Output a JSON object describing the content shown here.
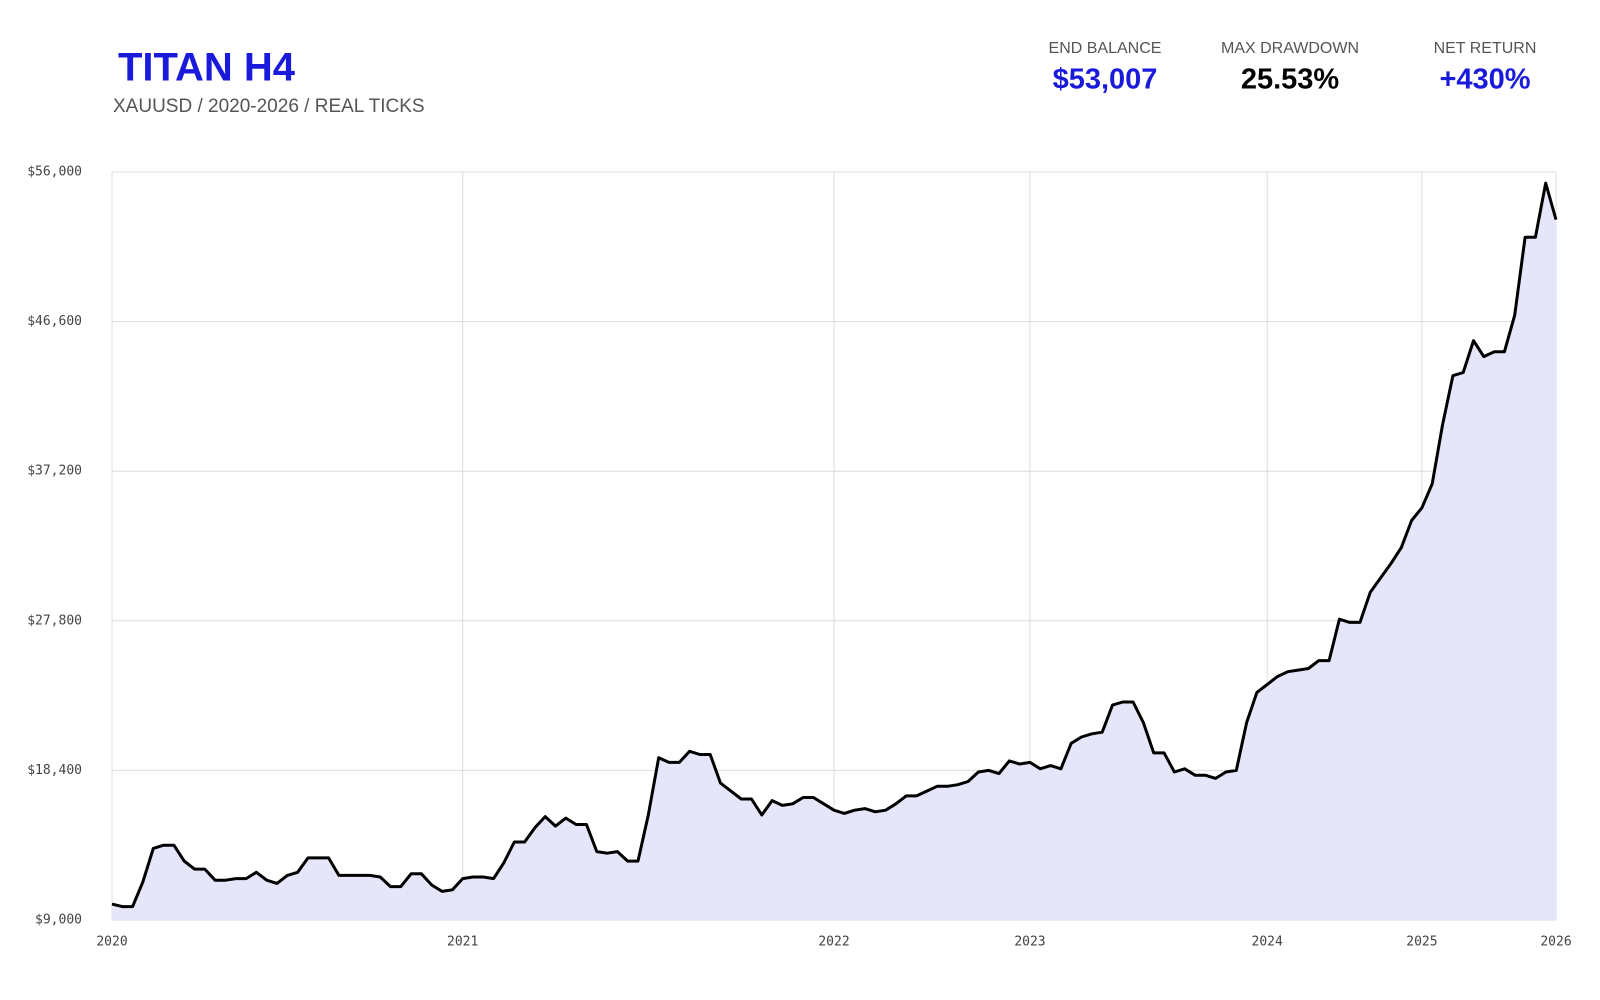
{
  "chart_data": {
    "type": "area",
    "title": "TITAN H4",
    "subtitle": "XAUUSD / 2020-2026 / REAL TICKS",
    "stats": [
      {
        "label": "END BALANCE",
        "value": "$53,007",
        "color": "#1a1adb"
      },
      {
        "label": "MAX DRAWDOWN",
        "value": "25.53%",
        "color": "#000000"
      },
      {
        "label": "NET RETURN",
        "value": "+430%",
        "color": "#1a1adb"
      }
    ],
    "categories": [
      "2020",
      null,
      null,
      null,
      null,
      null,
      null,
      null,
      null,
      null,
      null,
      null,
      null,
      null,
      null,
      null,
      null,
      null,
      null,
      null,
      null,
      null,
      null,
      null,
      null,
      null,
      null,
      null,
      null,
      null,
      null,
      null,
      null,
      null,
      "2021",
      null,
      null,
      null,
      null,
      null,
      null,
      null,
      null,
      null,
      null,
      null,
      null,
      null,
      null,
      null,
      null,
      null,
      null,
      null,
      null,
      null,
      null,
      null,
      null,
      null,
      null,
      null,
      null,
      null,
      null,
      null,
      null,
      null,
      null,
      null,
      "2022",
      null,
      null,
      null,
      null,
      null,
      null,
      null,
      null,
      null,
      null,
      null,
      null,
      null,
      null,
      null,
      null,
      null,
      null,
      "2023",
      null,
      null,
      null,
      null,
      null,
      null,
      null,
      null,
      null,
      null,
      null,
      null,
      null,
      null,
      null,
      null,
      null,
      null,
      null,
      null,
      null,
      null,
      "2024",
      null,
      null,
      null,
      null,
      null,
      null,
      null,
      null,
      null,
      null,
      null,
      null,
      null,
      null,
      "2025",
      null,
      null,
      null,
      null,
      null,
      null,
      null,
      null,
      null,
      null,
      null,
      null,
      "2026"
    ],
    "series": [
      {
        "name": "Balance",
        "color": "#000000",
        "fill": "#e6e6fa",
        "values": [
          10000,
          9840,
          9840,
          11400,
          13500,
          13700,
          13700,
          12700,
          12200,
          12200,
          11500,
          11500,
          11600,
          11600,
          12000,
          11500,
          11300,
          11800,
          12000,
          12900,
          12900,
          12900,
          11800,
          11800,
          11800,
          11800,
          11700,
          11100,
          11100,
          11900,
          11900,
          11200,
          10800,
          10900,
          11600,
          11700,
          11700,
          11600,
          12600,
          13900,
          13900,
          14800,
          15500,
          14900,
          15400,
          15000,
          15000,
          13300,
          13200,
          13300,
          12700,
          12700,
          15600,
          19200,
          18900,
          18900,
          19600,
          19400,
          19400,
          17600,
          17100,
          16600,
          16600,
          15600,
          16500,
          16200,
          16300,
          16700,
          16700,
          16300,
          15900,
          15700,
          15900,
          16000,
          15800,
          15900,
          16300,
          16800,
          16800,
          17100,
          17400,
          17400,
          17500,
          17700,
          18300,
          18400,
          18200,
          19000,
          18800,
          18900,
          18500,
          18700,
          18500,
          20100,
          20500,
          20700,
          20800,
          22500,
          22700,
          22700,
          21400,
          19500,
          19500,
          18300,
          18500,
          18100,
          18100,
          17900,
          18300,
          18400,
          21400,
          23300,
          23800,
          24300,
          24600,
          24700,
          24800,
          25300,
          25300,
          27900,
          27700,
          27700,
          29600,
          30500,
          31400,
          32400,
          34100,
          34900,
          36400,
          40100,
          43200,
          43400,
          45400,
          44400,
          44700,
          44700,
          47000,
          51900,
          51900,
          55300,
          53007
        ]
      }
    ],
    "ylim": [
      9000,
      56000
    ],
    "yticks": [
      {
        "value": 9000,
        "label": "$9,000"
      },
      {
        "value": 18400,
        "label": "$18,400"
      },
      {
        "value": 27800,
        "label": "$27,800"
      },
      {
        "value": 37200,
        "label": "$37,200"
      },
      {
        "value": 46600,
        "label": "$46,600"
      },
      {
        "value": 56000,
        "label": "$56,000"
      }
    ],
    "grid": true
  }
}
